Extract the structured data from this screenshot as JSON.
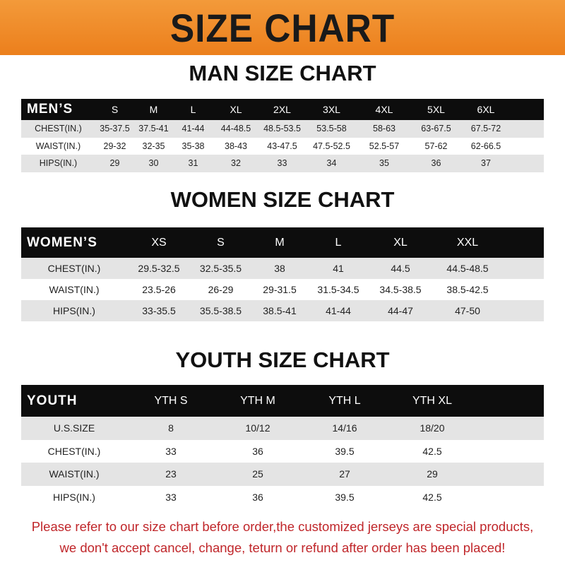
{
  "title": "SIZE CHART",
  "colors": {
    "banner": "#ec7f1c",
    "header_row": "#0d0d0d",
    "note": "#c0262a"
  },
  "men": {
    "title": "MAN SIZE CHART",
    "header": "MEN’S",
    "sizes": [
      "S",
      "M",
      "L",
      "XL",
      "2XL",
      "3XL",
      "4XL",
      "5XL",
      "6XL"
    ],
    "rows": [
      {
        "label": "CHEST(IN.)",
        "values": [
          "35-37.5",
          "37.5-41",
          "41-44",
          "44-48.5",
          "48.5-53.5",
          "53.5-58",
          "58-63",
          "63-67.5",
          "67.5-72"
        ]
      },
      {
        "label": "WAIST(IN.)",
        "values": [
          "29-32",
          "32-35",
          "35-38",
          "38-43",
          "43-47.5",
          "47.5-52.5",
          "52.5-57",
          "57-62",
          "62-66.5"
        ]
      },
      {
        "label": "HIPS(IN.)",
        "values": [
          "29",
          "30",
          "31",
          "32",
          "33",
          "34",
          "35",
          "36",
          "37"
        ]
      }
    ]
  },
  "women": {
    "title": "WOMEN SIZE CHART",
    "header": "WOMEN’S",
    "sizes": [
      "XS",
      "S",
      "M",
      "L",
      "XL",
      "XXL"
    ],
    "rows": [
      {
        "label": "CHEST(IN.)",
        "values": [
          "29.5-32.5",
          "32.5-35.5",
          "38",
          "41",
          "44.5",
          "44.5-48.5"
        ]
      },
      {
        "label": "WAIST(IN.)",
        "values": [
          "23.5-26",
          "26-29",
          "29-31.5",
          "31.5-34.5",
          "34.5-38.5",
          "38.5-42.5"
        ]
      },
      {
        "label": "HIPS(IN.)",
        "values": [
          "33-35.5",
          "35.5-38.5",
          "38.5-41",
          "41-44",
          "44-47",
          "47-50"
        ]
      }
    ]
  },
  "youth": {
    "title": "YOUTH SIZE CHART",
    "header": "YOUTH",
    "sizes": [
      "YTH S",
      "YTH M",
      "YTH L",
      "YTH XL"
    ],
    "rows": [
      {
        "label": "U.S.SIZE",
        "values": [
          "8",
          "10/12",
          "14/16",
          "18/20"
        ]
      },
      {
        "label": "CHEST(IN.)",
        "values": [
          "33",
          "36",
          "39.5",
          "42.5"
        ]
      },
      {
        "label": "WAIST(IN.)",
        "values": [
          "23",
          "25",
          "27",
          "29"
        ]
      },
      {
        "label": "HIPS(IN.)",
        "values": [
          "33",
          "36",
          "39.5",
          "42.5"
        ]
      }
    ]
  },
  "note": {
    "line1": "Please refer to our size chart before order,the customized jerseys are special products,",
    "line2": "we don't accept cancel, change, teturn or refund after order has been placed!"
  }
}
